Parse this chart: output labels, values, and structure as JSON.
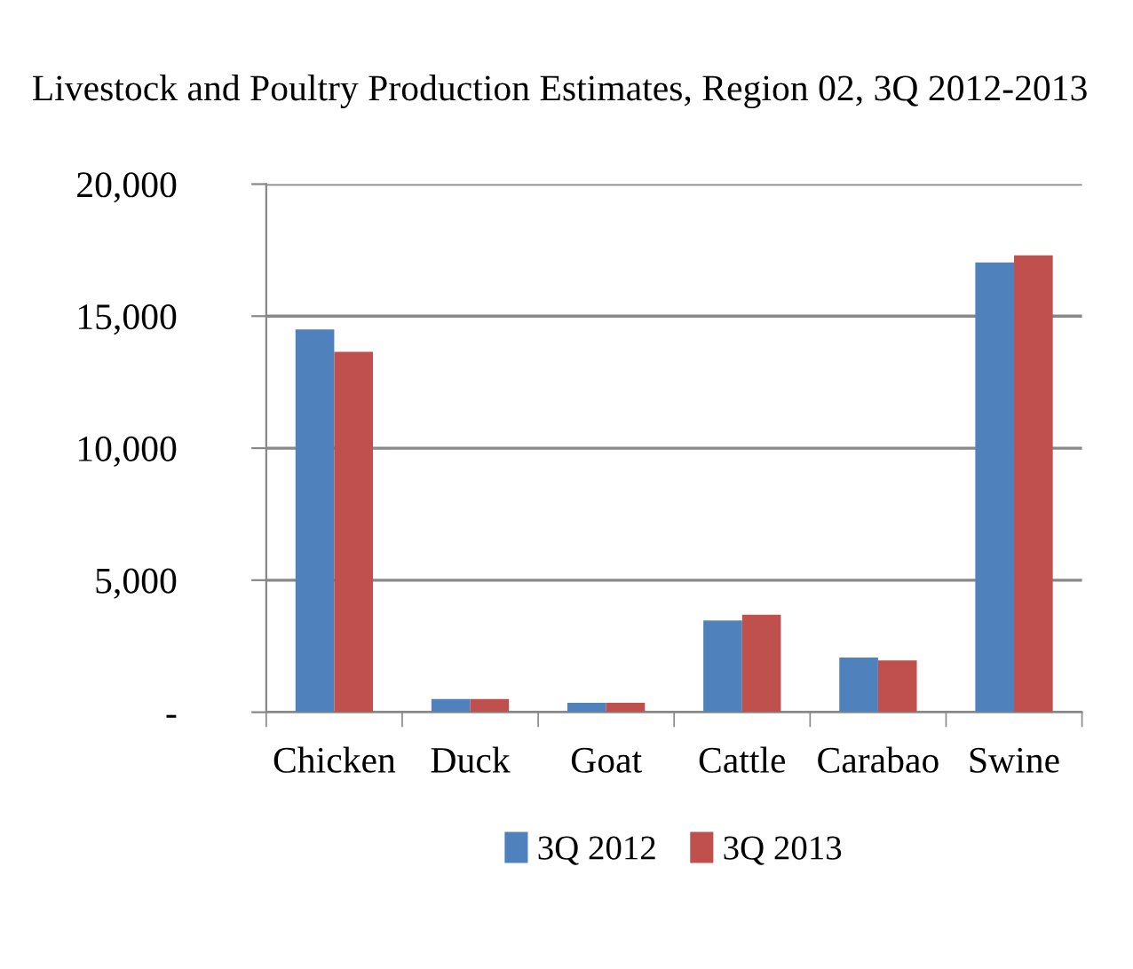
{
  "chart_data": {
    "type": "bar",
    "title": "Livestock and Poultry Production Estimates, Region 02, 3Q 2012-2013",
    "categories": [
      "Chicken",
      "Duck",
      "Goat",
      "Cattle",
      "Carabao",
      "Swine"
    ],
    "series": [
      {
        "name": "3Q 2012",
        "color": "#4f81bd",
        "values": [
          14500,
          500,
          360,
          3470,
          2070,
          17030
        ]
      },
      {
        "name": "3Q 2013",
        "color": "#c0504d",
        "values": [
          13650,
          500,
          360,
          3690,
          1960,
          17300
        ]
      }
    ],
    "ylim": [
      0,
      20000
    ],
    "yticks": [
      {
        "value": 0,
        "label": "-"
      },
      {
        "value": 5000,
        "label": "5,000"
      },
      {
        "value": 10000,
        "label": "10,000"
      },
      {
        "value": 15000,
        "label": "15,000"
      },
      {
        "value": 20000,
        "label": "20,000"
      }
    ],
    "grid": "y",
    "legend": "bottom"
  }
}
